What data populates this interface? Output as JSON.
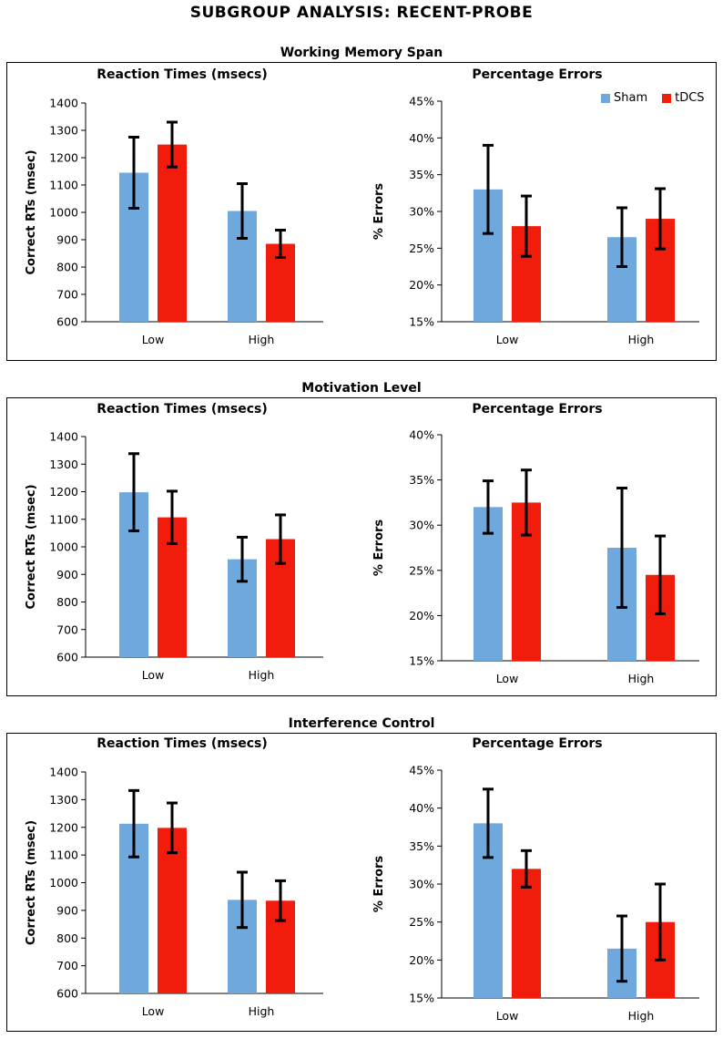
{
  "figure_title": "SUBGROUP ANALYSIS: RECENT-PROBE",
  "colors": {
    "sham": "#6fa8dc",
    "tdcs": "#f21c0d"
  },
  "legend": {
    "sham": "Sham",
    "tdcs": "tDCS"
  },
  "sections": [
    {
      "title": "Working Memory Span"
    },
    {
      "title": "Motivation Level"
    },
    {
      "title": "Interference Control"
    }
  ],
  "chart_data": [
    {
      "section": "Working Memory Span",
      "type": "bar",
      "title": "Reaction Times (msecs)",
      "ylabel": "Correct RTs (msec)",
      "categories": [
        "Low",
        "High"
      ],
      "ylim": [
        600,
        1400
      ],
      "yticks": [
        "600",
        "700",
        "800",
        "900",
        "1000",
        "1100",
        "1200",
        "1300",
        "1400"
      ],
      "series": [
        {
          "name": "Sham",
          "values": [
            1145,
            1005
          ],
          "err": [
            130,
            100
          ]
        },
        {
          "name": "tDCS",
          "values": [
            1248,
            885
          ],
          "err": [
            82,
            50
          ]
        }
      ]
    },
    {
      "section": "Working Memory Span",
      "type": "bar",
      "title": "Percentage Errors",
      "ylabel": "% Errors",
      "categories": [
        "Low",
        "High"
      ],
      "ylim": [
        15,
        45
      ],
      "yticks": [
        "15%",
        "20%",
        "25%",
        "30%",
        "35%",
        "40%",
        "45%"
      ],
      "series": [
        {
          "name": "Sham",
          "values": [
            33,
            26.5
          ],
          "err": [
            6,
            4
          ]
        },
        {
          "name": "tDCS",
          "values": [
            28,
            29
          ],
          "err": [
            4.1,
            4.1
          ]
        }
      ]
    },
    {
      "section": "Motivation Level",
      "type": "bar",
      "title": "Reaction Times (msecs)",
      "ylabel": "Correct RTs (msec)",
      "categories": [
        "Low",
        "High"
      ],
      "ylim": [
        600,
        1400
      ],
      "yticks": [
        "600",
        "700",
        "800",
        "900",
        "1000",
        "1100",
        "1200",
        "1300",
        "1400"
      ],
      "series": [
        {
          "name": "Sham",
          "values": [
            1198,
            955
          ],
          "err": [
            140,
            80
          ]
        },
        {
          "name": "tDCS",
          "values": [
            1107,
            1028
          ],
          "err": [
            95,
            88
          ]
        }
      ]
    },
    {
      "section": "Motivation Level",
      "type": "bar",
      "title": "Percentage Errors",
      "ylabel": "% Errors",
      "categories": [
        "Low",
        "High"
      ],
      "ylim": [
        15,
        40
      ],
      "yticks": [
        "15%",
        "20%",
        "25%",
        "30%",
        "35%",
        "40%"
      ],
      "series": [
        {
          "name": "Sham",
          "values": [
            32,
            27.5
          ],
          "err": [
            2.9,
            6.6
          ]
        },
        {
          "name": "tDCS",
          "values": [
            32.5,
            24.5
          ],
          "err": [
            3.6,
            4.3
          ]
        }
      ]
    },
    {
      "section": "Interference Control",
      "type": "bar",
      "title": "Reaction Times (msecs)",
      "ylabel": "Correct RTs (msec)",
      "categories": [
        "Low",
        "High"
      ],
      "ylim": [
        600,
        1400
      ],
      "yticks": [
        "600",
        "700",
        "800",
        "900",
        "1000",
        "1100",
        "1200",
        "1300",
        "1400"
      ],
      "series": [
        {
          "name": "Sham",
          "values": [
            1213,
            938
          ],
          "err": [
            120,
            100
          ]
        },
        {
          "name": "tDCS",
          "values": [
            1198,
            935
          ],
          "err": [
            90,
            72
          ]
        }
      ]
    },
    {
      "section": "Interference Control",
      "type": "bar",
      "title": "Percentage Errors",
      "ylabel": "% Errors",
      "categories": [
        "Low",
        "High"
      ],
      "ylim": [
        15,
        45
      ],
      "yticks": [
        "15%",
        "20%",
        "25%",
        "30%",
        "35%",
        "40%",
        "45%"
      ],
      "series": [
        {
          "name": "Sham",
          "values": [
            38,
            21.5
          ],
          "err": [
            4.5,
            4.3
          ]
        },
        {
          "name": "tDCS",
          "values": [
            32,
            25
          ],
          "err": [
            2.4,
            5
          ]
        }
      ]
    }
  ]
}
